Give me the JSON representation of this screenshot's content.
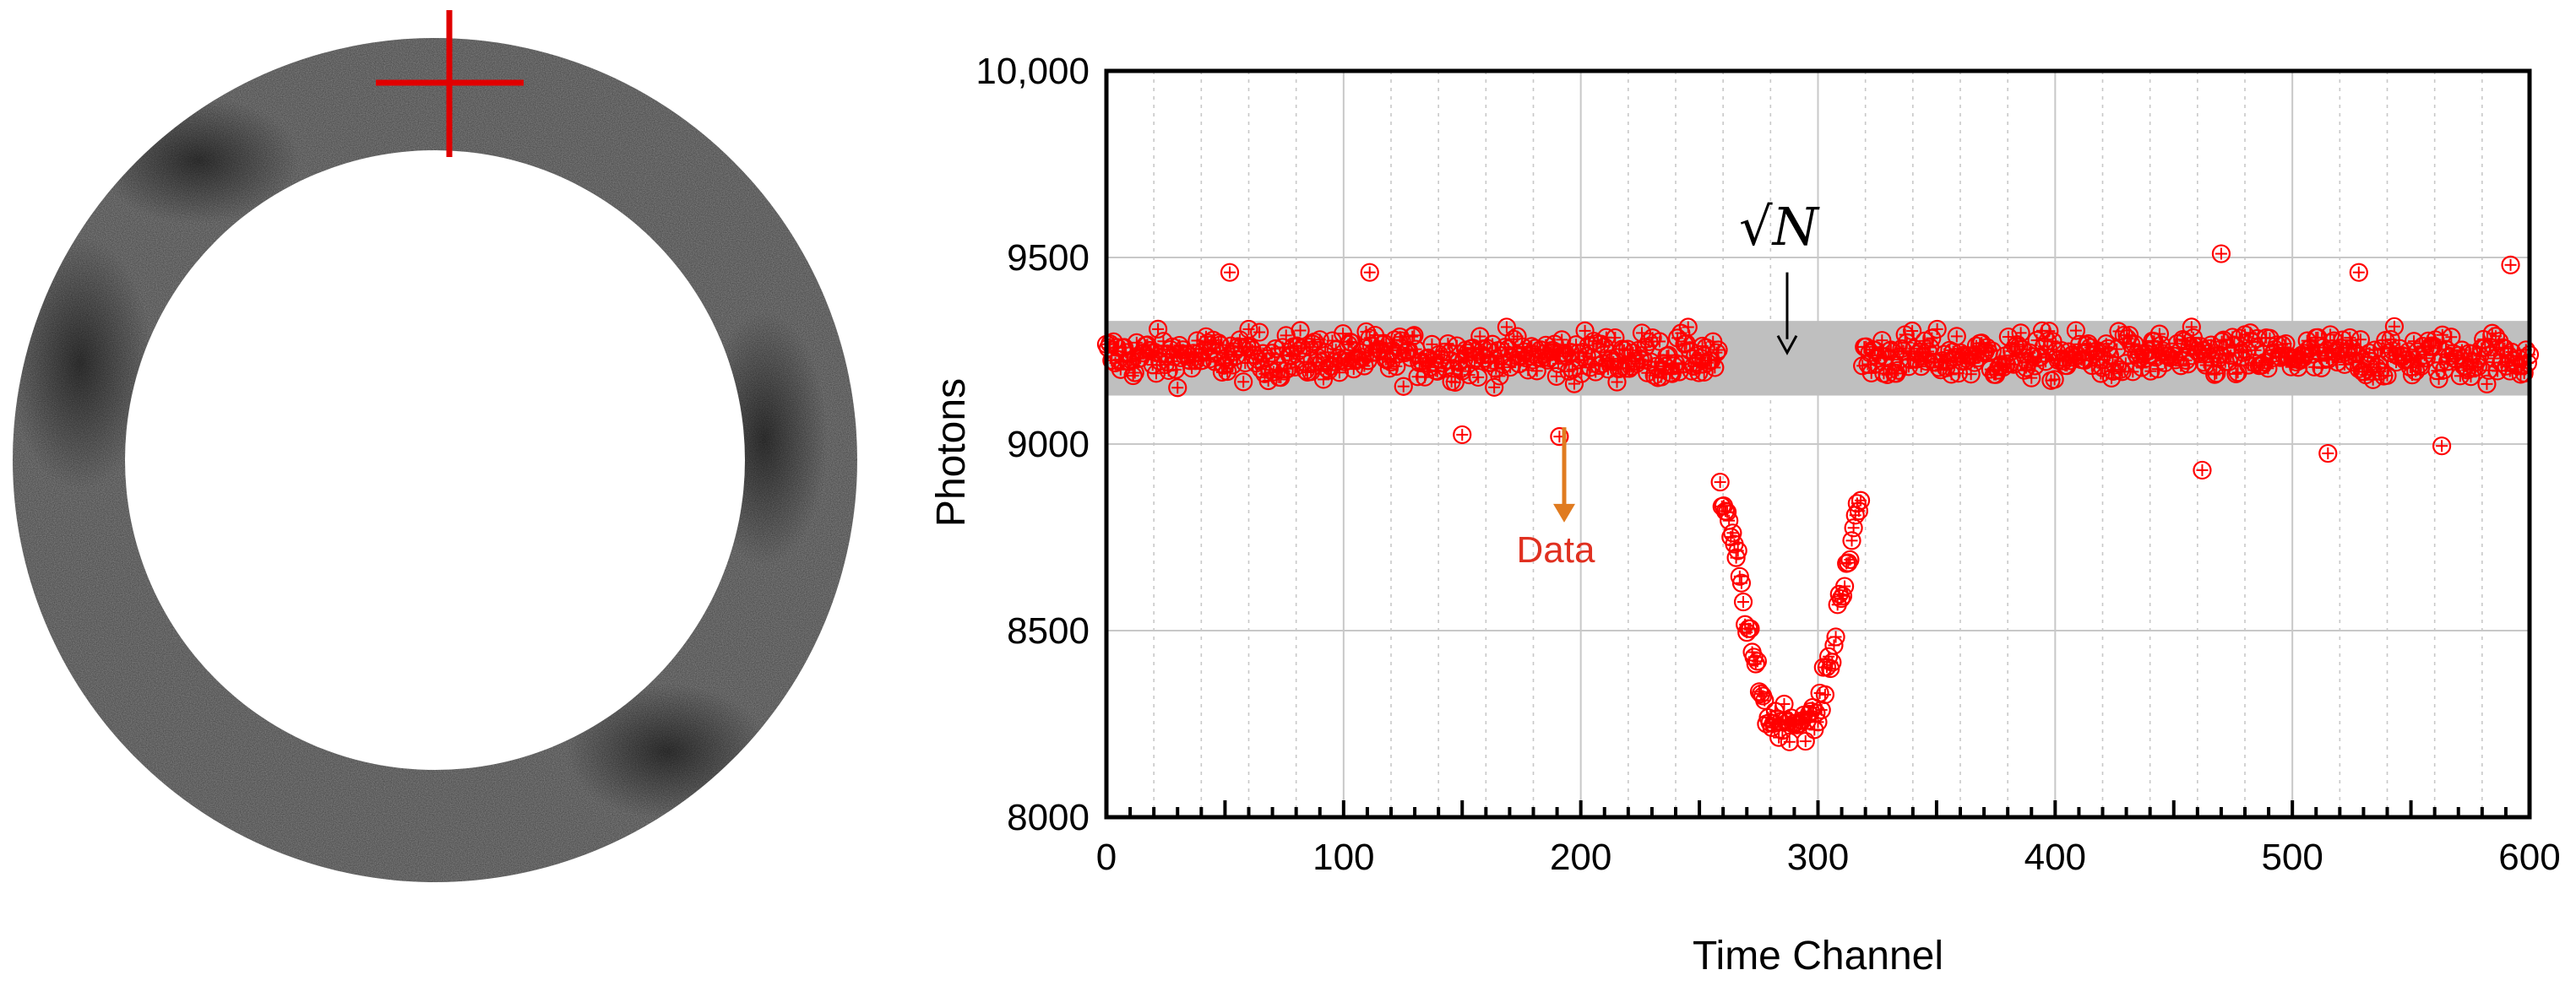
{
  "colors": {
    "marker": "#ff0000",
    "band": "#bfbfbf",
    "grid": "#c8c8c8",
    "data_arrow": "#e07b20",
    "data_label": "#e03020",
    "crosshair": "#e00000",
    "ring": "#8a8a8a",
    "ring_dark": "#4a4a4a"
  },
  "ring_image": {
    "icons": [
      "ring-image-icon",
      "crosshair-icon"
    ]
  },
  "chart_data": {
    "type": "scatter",
    "xlabel": "Time Channel",
    "ylabel": "Photons",
    "xlim": [
      0,
      600
    ],
    "ylim": [
      8000,
      10000
    ],
    "x_ticks": [
      0,
      100,
      200,
      300,
      400,
      500,
      600
    ],
    "y_ticks": [
      8000,
      8500,
      9000,
      9500,
      10000
    ],
    "x_tick_labels": [
      "0",
      "100",
      "200",
      "300",
      "400",
      "500",
      "600"
    ],
    "y_tick_labels": [
      "8000",
      "8500",
      "9000",
      "9500",
      "10,000"
    ],
    "grid": true,
    "band": {
      "y_low": 9130,
      "y_high": 9330,
      "label": "√N"
    },
    "series": [
      {
        "name": "Data",
        "marker": "circle-plus",
        "x_start": 0,
        "x_step": 0.75,
        "segments": [
          {
            "x_from": 0,
            "x_to": 258,
            "mean": 9235,
            "spread": 110
          },
          {
            "x_from": 258,
            "x_to": 268,
            "from": 8880,
            "to": 8650,
            "spread": 60
          },
          {
            "x_from": 268,
            "x_to": 278,
            "from": 8550,
            "to": 8300,
            "spread": 70
          },
          {
            "x_from": 278,
            "x_to": 300,
            "mean": 8260,
            "spread": 80
          },
          {
            "x_from": 300,
            "x_to": 308,
            "from": 8280,
            "to": 8500,
            "spread": 80
          },
          {
            "x_from": 308,
            "x_to": 318,
            "from": 8550,
            "to": 8850,
            "spread": 70
          },
          {
            "x_from": 318,
            "x_to": 600,
            "mean": 9235,
            "spread": 110
          }
        ],
        "outliers": [
          {
            "x": 462,
            "y": 8930
          },
          {
            "x": 470,
            "y": 9510
          },
          {
            "x": 515,
            "y": 8975
          },
          {
            "x": 528,
            "y": 9460
          },
          {
            "x": 563,
            "y": 8995
          },
          {
            "x": 592,
            "y": 9480
          },
          {
            "x": 111,
            "y": 9460
          },
          {
            "x": 52,
            "y": 9460
          },
          {
            "x": 191,
            "y": 9020
          },
          {
            "x": 150,
            "y": 9025
          }
        ]
      }
    ],
    "annotations": [
      {
        "text": "Data",
        "x": 193,
        "y": 8720,
        "arrow_from": 9045,
        "arrow_to": 8790
      },
      {
        "text": "√N",
        "x": 287,
        "arrow_from": 9460,
        "arrow_to": 9245
      }
    ]
  }
}
